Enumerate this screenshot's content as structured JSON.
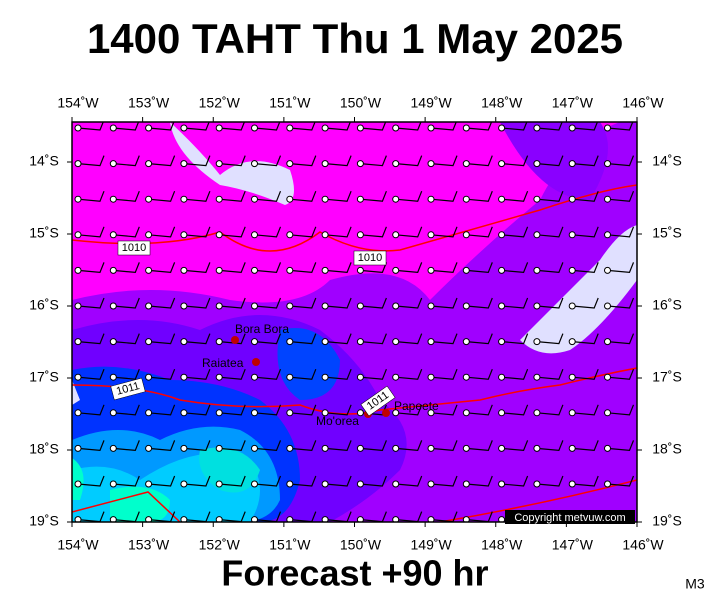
{
  "header": {
    "title": "1400 TAHT Thu 1 May 2025"
  },
  "longitude_labels": [
    "154˚W",
    "153˚W",
    "152˚W",
    "151˚W",
    "150˚W",
    "149˚W",
    "148˚W",
    "147˚W",
    "146˚W"
  ],
  "latitude_labels": [
    "14˚S",
    "15˚S",
    "16˚S",
    "17˚S",
    "18˚S",
    "19˚S"
  ],
  "isobar_labels": [
    "1010",
    "1010",
    "1011",
    "1011"
  ],
  "places": [
    "Bora Bora",
    "Raiatea",
    "Mo'orea",
    "Papeete"
  ],
  "copyright": "Copyright metvuw.com",
  "footer": {
    "forecast": "Forecast +90 hr",
    "model": "M3"
  }
}
